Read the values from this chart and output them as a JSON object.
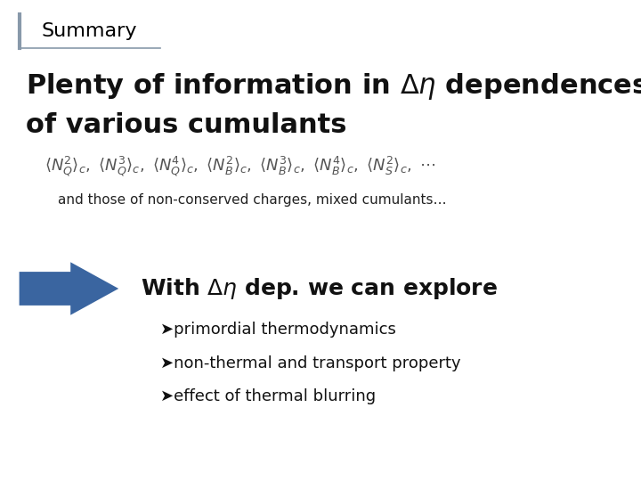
{
  "bg_color": "#ffffff",
  "title": "Summary",
  "title_fontsize": 16,
  "title_color": "#000000",
  "title_bar_color": "#8899aa",
  "main_text_line1": "Plenty of information in $\\Delta\\eta$ dependences",
  "main_text_line2": "of various cumulants",
  "main_text_fontsize": 22,
  "formula": "$\\langle N_Q^2\\rangle_c,\\ \\langle N_Q^3\\rangle_c,\\ \\langle N_Q^4\\rangle_c,\\ \\langle N_B^2\\rangle_c,\\ \\langle N_B^3\\rangle_c,\\ \\langle N_B^4\\rangle_c,\\ \\langle N_S^2\\rangle_c,\\ \\cdots$",
  "formula_fontsize": 13,
  "subtext": "and those of non-conserved charges, mixed cumulants…",
  "subtext_fontsize": 11,
  "arrow_color": "#3a65a0",
  "with_text": "With $\\Delta\\eta$ dep. we can explore",
  "with_text_fontsize": 18,
  "bullet1": "➤primordial thermodynamics",
  "bullet2": "➤non-thermal and transport property",
  "bullet3": "➤effect of thermal blurring",
  "bullet_fontsize": 13
}
